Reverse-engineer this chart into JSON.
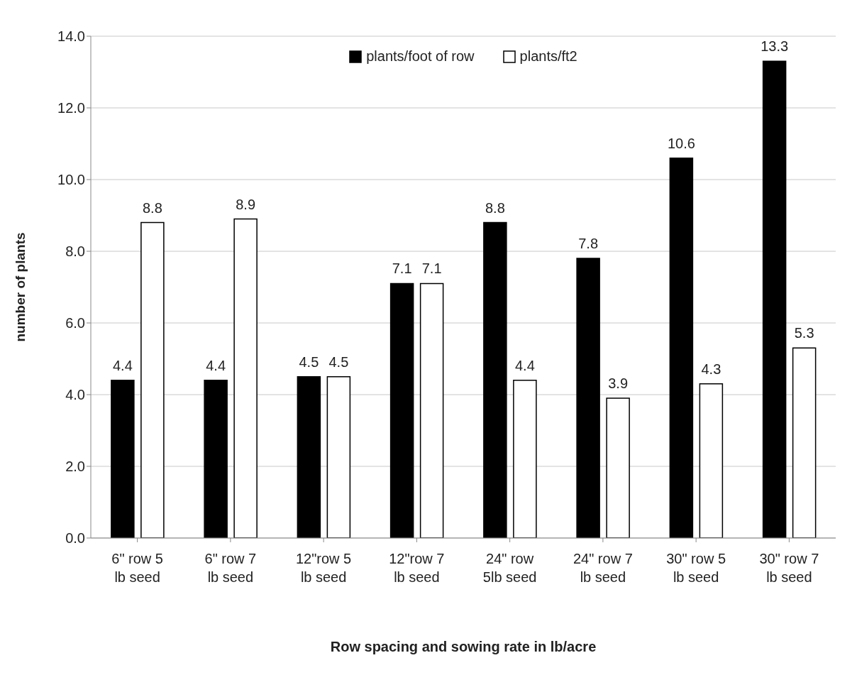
{
  "chart_data": {
    "type": "bar",
    "xlabel": "Row spacing and sowing rate in lb/acre",
    "ylabel": "number of plants",
    "categories": [
      "6\" row 5 lb seed",
      "6\" row 7 lb seed",
      "12\"row 5 lb seed",
      "12\"row 7 lb seed",
      "24\" row 5lb seed",
      "24\" row 7 lb seed",
      "30\" row 5 lb seed",
      "30\" row 7 lb seed"
    ],
    "series": [
      {
        "name": "plants/foot of row",
        "color": "#000000",
        "values": [
          4.4,
          4.4,
          4.5,
          7.1,
          8.8,
          7.8,
          10.6,
          13.3
        ]
      },
      {
        "name": "plants/ft2",
        "color": "#ffffff",
        "values": [
          8.8,
          8.9,
          4.5,
          7.1,
          4.4,
          3.9,
          4.3,
          5.3
        ]
      }
    ],
    "ylim": [
      0,
      14
    ],
    "yticks": [
      {
        "value": 0,
        "label": "0.0"
      },
      {
        "value": 2,
        "label": "2.0"
      },
      {
        "value": 4,
        "label": "4.0"
      },
      {
        "value": 6,
        "label": "6.0"
      },
      {
        "value": 8,
        "label": "8.0"
      },
      {
        "value": 10,
        "label": "10.0"
      },
      {
        "value": 12,
        "label": "12.0"
      },
      {
        "value": 14,
        "label": "14.0"
      }
    ],
    "grid": "y",
    "legend": "top",
    "data_labels": true
  }
}
